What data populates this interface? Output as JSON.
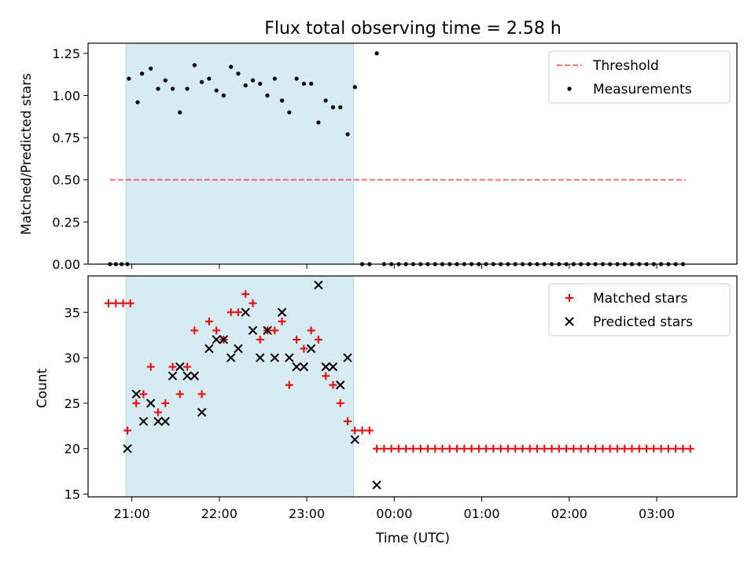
{
  "title": "Flux total observing time = 2.58 h",
  "colors": {
    "highlight": "#add8e6",
    "threshold": "#ff0000",
    "measurements": "#000000",
    "matched": "#ff0000",
    "predicted": "#000000"
  },
  "chart_data": [
    {
      "type": "scatter",
      "ylabel": "Matched/Predicted stars",
      "ylim": [
        0,
        1.31
      ],
      "yticks": [
        0,
        0.25,
        0.5,
        0.75,
        1.0,
        1.25
      ],
      "ytick_labels": [
        "0.00",
        "0.25",
        "0.50",
        "0.75",
        "1.00",
        "1.25"
      ],
      "xlim": [
        "20:30",
        "03:55"
      ],
      "xticks": [
        "21:00",
        "22:00",
        "23:00",
        "00:00",
        "01:00",
        "02:00",
        "03:00"
      ],
      "shaded_interval": [
        "20:56",
        "23:32"
      ],
      "legend": {
        "position": "top-right",
        "entries": [
          "Threshold",
          "Measurements"
        ]
      },
      "series": [
        {
          "name": "Threshold",
          "style": "dashed-line",
          "x": [
            "20:45",
            "03:20"
          ],
          "y": [
            0.5,
            0.5
          ]
        },
        {
          "name": "Measurements",
          "style": "dot",
          "points": [
            [
              "20:45",
              0
            ],
            [
              "20:49",
              0
            ],
            [
              "20:53",
              0
            ],
            [
              "20:57",
              0
            ],
            [
              "20:58",
              1.1
            ],
            [
              "21:04",
              0.96
            ],
            [
              "21:07",
              1.13
            ],
            [
              "21:13",
              1.16
            ],
            [
              "21:18",
              1.04
            ],
            [
              "21:23",
              1.09
            ],
            [
              "21:28",
              1.04
            ],
            [
              "21:33",
              0.9
            ],
            [
              "21:38",
              1.04
            ],
            [
              "21:43",
              1.18
            ],
            [
              "21:48",
              1.08
            ],
            [
              "21:53",
              1.1
            ],
            [
              "21:58",
              1.03
            ],
            [
              "22:03",
              1.0
            ],
            [
              "22:08",
              1.17
            ],
            [
              "22:13",
              1.13
            ],
            [
              "22:18",
              1.06
            ],
            [
              "22:23",
              1.09
            ],
            [
              "22:28",
              1.07
            ],
            [
              "22:33",
              1.0
            ],
            [
              "22:38",
              1.1
            ],
            [
              "22:43",
              0.97
            ],
            [
              "22:48",
              0.9
            ],
            [
              "22:53",
              1.1
            ],
            [
              "22:58",
              1.07
            ],
            [
              "23:03",
              1.07
            ],
            [
              "23:08",
              0.84
            ],
            [
              "23:13",
              0.97
            ],
            [
              "23:18",
              0.93
            ],
            [
              "23:23",
              0.93
            ],
            [
              "23:28",
              0.77
            ],
            [
              "23:33",
              1.05
            ],
            [
              "23:38",
              0
            ],
            [
              "23:43",
              0
            ],
            [
              "23:48",
              1.25
            ],
            [
              "23:53",
              0
            ],
            [
              "23:58",
              0
            ],
            [
              "00:03",
              0
            ],
            [
              "00:08",
              0
            ],
            [
              "00:13",
              0
            ],
            [
              "00:18",
              0
            ],
            [
              "00:23",
              0
            ],
            [
              "00:28",
              0
            ],
            [
              "00:33",
              0
            ],
            [
              "00:38",
              0
            ],
            [
              "00:43",
              0
            ],
            [
              "00:48",
              0
            ],
            [
              "00:53",
              0
            ],
            [
              "00:58",
              0
            ],
            [
              "01:03",
              0
            ],
            [
              "01:08",
              0
            ],
            [
              "01:13",
              0
            ],
            [
              "01:18",
              0
            ],
            [
              "01:23",
              0
            ],
            [
              "01:28",
              0
            ],
            [
              "01:33",
              0
            ],
            [
              "01:38",
              0
            ],
            [
              "01:43",
              0
            ],
            [
              "01:48",
              0
            ],
            [
              "01:53",
              0
            ],
            [
              "01:58",
              0
            ],
            [
              "02:03",
              0
            ],
            [
              "02:08",
              0
            ],
            [
              "02:13",
              0
            ],
            [
              "02:18",
              0
            ],
            [
              "02:23",
              0
            ],
            [
              "02:28",
              0
            ],
            [
              "02:33",
              0
            ],
            [
              "02:38",
              0
            ],
            [
              "02:43",
              0
            ],
            [
              "02:48",
              0
            ],
            [
              "02:53",
              0
            ],
            [
              "02:58",
              0
            ],
            [
              "03:03",
              0
            ],
            [
              "03:08",
              0
            ],
            [
              "03:13",
              0
            ],
            [
              "03:18",
              0
            ]
          ]
        }
      ]
    },
    {
      "type": "scatter",
      "xlabel": "Time (UTC)",
      "ylabel": "Count",
      "ylim": [
        14.7,
        39
      ],
      "yticks": [
        15,
        20,
        25,
        30,
        35
      ],
      "ytick_labels": [
        "15",
        "20",
        "25",
        "30",
        "35"
      ],
      "xlim": [
        "20:30",
        "03:55"
      ],
      "xticks": [
        "21:00",
        "22:00",
        "23:00",
        "00:00",
        "01:00",
        "02:00",
        "03:00"
      ],
      "xtick_labels": [
        "21:00",
        "22:00",
        "23:00",
        "00:00",
        "01:00",
        "02:00",
        "03:00"
      ],
      "shaded_interval": [
        "20:56",
        "23:32"
      ],
      "legend": {
        "position": "top-right",
        "entries": [
          "Matched stars",
          "Predicted stars"
        ]
      },
      "series": [
        {
          "name": "Matched stars",
          "marker": "plus",
          "points": [
            [
              "20:44",
              36
            ],
            [
              "20:49",
              36
            ],
            [
              "20:54",
              36
            ],
            [
              "20:59",
              36
            ],
            [
              "20:57",
              22
            ],
            [
              "21:03",
              25
            ],
            [
              "21:08",
              26
            ],
            [
              "21:13",
              29
            ],
            [
              "21:18",
              24
            ],
            [
              "21:23",
              25
            ],
            [
              "21:28",
              29
            ],
            [
              "21:33",
              26
            ],
            [
              "21:38",
              29
            ],
            [
              "21:43",
              33
            ],
            [
              "21:48",
              26
            ],
            [
              "21:53",
              34
            ],
            [
              "21:58",
              33
            ],
            [
              "22:03",
              32
            ],
            [
              "22:08",
              35
            ],
            [
              "22:13",
              35
            ],
            [
              "22:18",
              37
            ],
            [
              "22:23",
              36
            ],
            [
              "22:28",
              32
            ],
            [
              "22:33",
              33
            ],
            [
              "22:38",
              33
            ],
            [
              "22:43",
              34
            ],
            [
              "22:48",
              27
            ],
            [
              "22:53",
              32
            ],
            [
              "22:58",
              31
            ],
            [
              "23:03",
              33
            ],
            [
              "23:08",
              32
            ],
            [
              "23:13",
              28
            ],
            [
              "23:18",
              27
            ],
            [
              "23:23",
              25
            ],
            [
              "23:28",
              23
            ],
            [
              "23:33",
              22
            ],
            [
              "23:38",
              22
            ],
            [
              "23:43",
              22
            ],
            [
              "23:48",
              20
            ],
            [
              "23:53",
              20
            ],
            [
              "23:58",
              20
            ],
            [
              "00:03",
              20
            ],
            [
              "00:08",
              20
            ],
            [
              "00:13",
              20
            ],
            [
              "00:18",
              20
            ],
            [
              "00:23",
              20
            ],
            [
              "00:28",
              20
            ],
            [
              "00:33",
              20
            ],
            [
              "00:38",
              20
            ],
            [
              "00:43",
              20
            ],
            [
              "00:48",
              20
            ],
            [
              "00:53",
              20
            ],
            [
              "00:58",
              20
            ],
            [
              "01:03",
              20
            ],
            [
              "01:08",
              20
            ],
            [
              "01:13",
              20
            ],
            [
              "01:18",
              20
            ],
            [
              "01:23",
              20
            ],
            [
              "01:28",
              20
            ],
            [
              "01:33",
              20
            ],
            [
              "01:38",
              20
            ],
            [
              "01:43",
              20
            ],
            [
              "01:48",
              20
            ],
            [
              "01:53",
              20
            ],
            [
              "01:58",
              20
            ],
            [
              "02:03",
              20
            ],
            [
              "02:08",
              20
            ],
            [
              "02:13",
              20
            ],
            [
              "02:18",
              20
            ],
            [
              "02:23",
              20
            ],
            [
              "02:28",
              20
            ],
            [
              "02:33",
              20
            ],
            [
              "02:38",
              20
            ],
            [
              "02:43",
              20
            ],
            [
              "02:48",
              20
            ],
            [
              "02:53",
              20
            ],
            [
              "02:58",
              20
            ],
            [
              "03:03",
              20
            ],
            [
              "03:08",
              20
            ],
            [
              "03:13",
              20
            ],
            [
              "03:18",
              20
            ],
            [
              "03:23",
              20
            ]
          ]
        },
        {
          "name": "Predicted stars",
          "marker": "x",
          "points": [
            [
              "20:57",
              20
            ],
            [
              "21:03",
              26
            ],
            [
              "21:08",
              23
            ],
            [
              "21:13",
              25
            ],
            [
              "21:18",
              23
            ],
            [
              "21:23",
              23
            ],
            [
              "21:28",
              28
            ],
            [
              "21:33",
              29
            ],
            [
              "21:38",
              28
            ],
            [
              "21:43",
              28
            ],
            [
              "21:48",
              24
            ],
            [
              "21:53",
              31
            ],
            [
              "21:58",
              32
            ],
            [
              "22:03",
              32
            ],
            [
              "22:08",
              30
            ],
            [
              "22:13",
              31
            ],
            [
              "22:18",
              35
            ],
            [
              "22:23",
              33
            ],
            [
              "22:28",
              30
            ],
            [
              "22:33",
              33
            ],
            [
              "22:38",
              30
            ],
            [
              "22:43",
              35
            ],
            [
              "22:48",
              30
            ],
            [
              "22:53",
              29
            ],
            [
              "22:58",
              29
            ],
            [
              "23:03",
              31
            ],
            [
              "23:08",
              38
            ],
            [
              "23:13",
              29
            ],
            [
              "23:18",
              29
            ],
            [
              "23:23",
              27
            ],
            [
              "23:28",
              30
            ],
            [
              "23:33",
              21
            ],
            [
              "23:48",
              16
            ]
          ]
        }
      ]
    }
  ]
}
